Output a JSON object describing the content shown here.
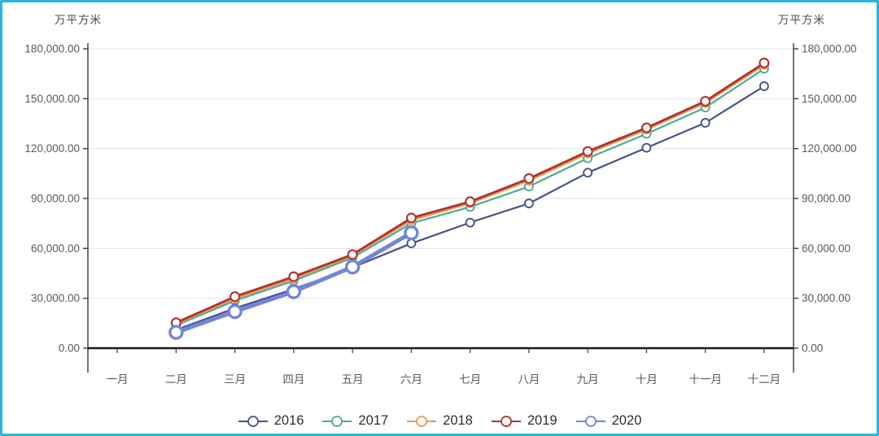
{
  "axis_titles": {
    "left": "万平方米",
    "right": "万平方米"
  },
  "colors": {
    "panel_border": "#2ab4dc",
    "grid": "#e3e3e3",
    "axis_line": "#3a3a3a",
    "zero_line": "#1a1a1a",
    "tick_label": "#595959",
    "legend_text": "#2e2e2e"
  },
  "chart_data": {
    "type": "line",
    "title": "",
    "xlabel": "",
    "ylabel": "万平方米",
    "ylim": [
      0,
      180000
    ],
    "ytick_values": [
      0,
      30000,
      60000,
      90000,
      120000,
      150000,
      180000
    ],
    "ytick_labels": [
      "0.00",
      "30,000.00",
      "60,000.00",
      "90,000.00",
      "120,000.00",
      "150,000.00",
      "180,000.00"
    ],
    "grid": "horizontal",
    "legend_position": "bottom",
    "secondary_axis": "mirrored right",
    "categories": [
      "一月",
      "二月",
      "三月",
      "四月",
      "五月",
      "六月",
      "七月",
      "八月",
      "九月",
      "十月",
      "十一月",
      "十二月"
    ],
    "series": [
      {
        "name": "2016",
        "color": "#47538b",
        "line_width": 2.2,
        "marker_radius": 5,
        "marker_stroke": 1.9,
        "values": [
          null,
          11000,
          24000,
          35500,
          48500,
          63000,
          75500,
          87000,
          105500,
          120500,
          135500,
          157500
        ]
      },
      {
        "name": "2017",
        "color": "#4fa993",
        "line_width": 2.2,
        "marker_radius": 5,
        "marker_stroke": 1.9,
        "values": [
          null,
          13700,
          28500,
          40500,
          54400,
          75100,
          84900,
          97200,
          114200,
          128900,
          144700,
          168000
        ]
      },
      {
        "name": "2018",
        "color": "#e89857",
        "line_width": 2.6,
        "marker_radius": 5.2,
        "marker_stroke": 2,
        "values": [
          null,
          14600,
          29900,
          41800,
          55600,
          77000,
          87200,
          100800,
          117200,
          131600,
          147500,
          170400
        ]
      },
      {
        "name": "2019",
        "color": "#ae332e",
        "line_width": 2.8,
        "marker_radius": 5.4,
        "marker_stroke": 2.1,
        "values": [
          null,
          15300,
          31000,
          43000,
          56300,
          78300,
          88100,
          102000,
          118300,
          132500,
          148500,
          171500
        ]
      },
      {
        "name": "2020",
        "color": "#7385d9",
        "line_width": 5,
        "marker_radius": 7.5,
        "marker_stroke": 3.4,
        "values": [
          null,
          9500,
          22000,
          34000,
          48800,
          69300,
          null,
          null,
          null,
          null,
          null,
          null
        ]
      }
    ],
    "draw_order": [
      1,
      2,
      3,
      0,
      4
    ]
  }
}
